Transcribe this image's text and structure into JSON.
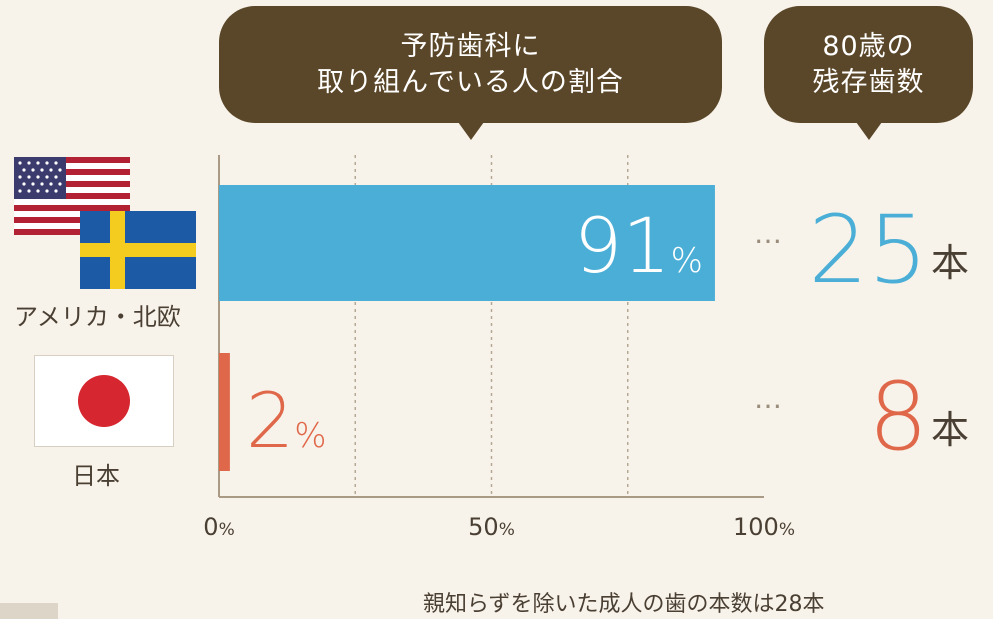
{
  "header": {
    "bubble_main": {
      "line1": "予防歯科に",
      "line2": "取り組んでいる人の割合"
    },
    "bubble_side": {
      "line1": "80歳の",
      "line2": "残存歯数"
    }
  },
  "chart_data": {
    "type": "bar",
    "orientation": "horizontal",
    "categories": [
      "アメリカ・北欧",
      "日本"
    ],
    "values": [
      91,
      2
    ],
    "value_labels": [
      {
        "number": "91",
        "unit": "%"
      },
      {
        "number": "2",
        "unit": "%"
      }
    ],
    "colors": [
      "#4aaed6",
      "#e0684a"
    ],
    "xlim": [
      0,
      100
    ],
    "ticks": [
      {
        "value": 0,
        "number": "0",
        "unit": "%"
      },
      {
        "value": 50,
        "number": "50",
        "unit": "%"
      },
      {
        "value": 100,
        "number": "100",
        "unit": "%"
      }
    ],
    "gridlines": [
      25,
      50,
      75
    ],
    "grid": true,
    "secondary": {
      "dots": "…",
      "values": [
        {
          "number": "25",
          "unit": "本",
          "color": "#4aaed6"
        },
        {
          "number": "8",
          "unit": "本",
          "color": "#e0684a"
        }
      ]
    }
  },
  "countries": {
    "usa_north_europe": {
      "label": "アメリカ・北欧",
      "flags": [
        "usa-flag",
        "sweden-flag"
      ]
    },
    "japan": {
      "label": "日本",
      "flags": [
        "japan-flag"
      ]
    }
  },
  "footnote": "親知らずを除いた成人の歯の本数は28本"
}
